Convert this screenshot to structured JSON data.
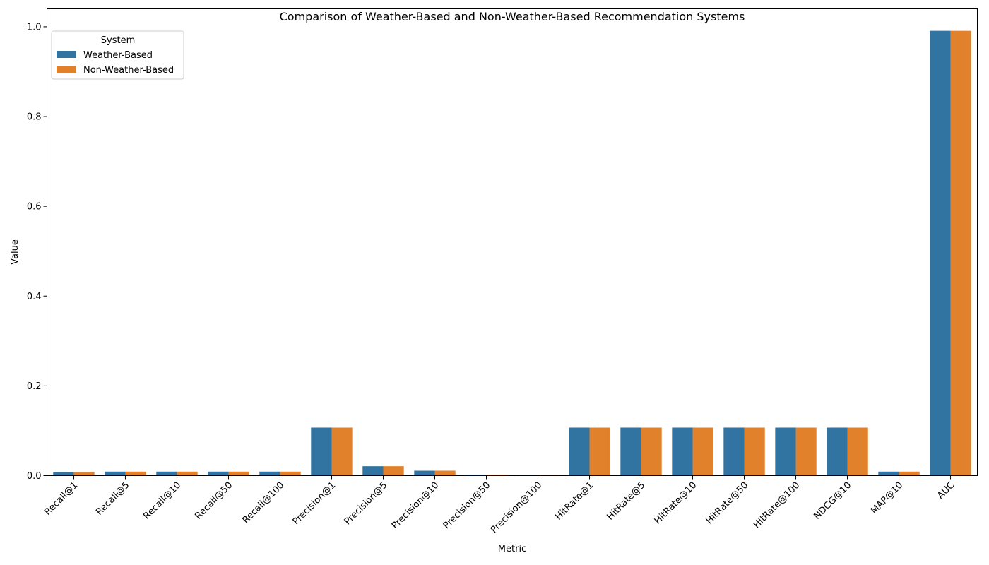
{
  "chart_data": {
    "type": "bar",
    "title": "Comparison of Weather-Based and Non-Weather-Based Recommendation Systems",
    "xlabel": "Metric",
    "ylabel": "Value",
    "ylim": [
      0,
      1.04
    ],
    "yticks": [
      "0.0",
      "0.2",
      "0.4",
      "0.6",
      "0.8",
      "1.0"
    ],
    "ytick_values": [
      0,
      0.2,
      0.4,
      0.6,
      0.8,
      1.0
    ],
    "grid": false,
    "legend": {
      "title": "System",
      "placement": "top-left"
    },
    "categories": [
      "Recall@1",
      "Recall@5",
      "Recall@10",
      "Recall@50",
      "Recall@100",
      "Precision@1",
      "Precision@5",
      "Precision@10",
      "Precision@50",
      "Precision@100",
      "HitRate@1",
      "HitRate@5",
      "HitRate@10",
      "HitRate@50",
      "HitRate@100",
      "NDCG@10",
      "MAP@10",
      "AUC"
    ],
    "series": [
      {
        "name": "Weather-Based",
        "color": "#3274a1",
        "values": [
          0.008,
          0.009,
          0.009,
          0.009,
          0.009,
          0.107,
          0.021,
          0.011,
          0.002,
          0.001,
          0.107,
          0.107,
          0.107,
          0.107,
          0.107,
          0.107,
          0.009,
          0.991
        ]
      },
      {
        "name": "Non-Weather-Based",
        "color": "#e1812c",
        "values": [
          0.008,
          0.009,
          0.009,
          0.009,
          0.009,
          0.107,
          0.021,
          0.011,
          0.002,
          0.001,
          0.107,
          0.107,
          0.107,
          0.107,
          0.107,
          0.107,
          0.009,
          0.991
        ]
      }
    ]
  }
}
